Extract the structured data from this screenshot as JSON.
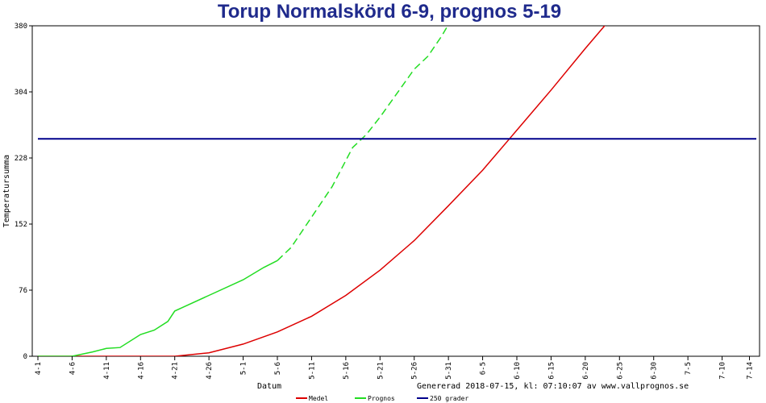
{
  "chart_data": {
    "type": "line",
    "title": "Torup Normalskörd 6-9, prognos 5-19",
    "xlabel": "Datum",
    "ylabel": "Temperatursumma",
    "footer": "Genererad 2018-07-15, kl: 07:10:07 av www.vallprognos.se",
    "ylim": [
      0,
      380
    ],
    "yticks": [
      0,
      76,
      152,
      228,
      304,
      380
    ],
    "x_start": "4-1",
    "x_end": "7-15",
    "xticks": [
      "4-1",
      "4-6",
      "4-11",
      "4-16",
      "4-21",
      "4-26",
      "5-1",
      "5-6",
      "5-11",
      "5-16",
      "5-21",
      "5-26",
      "5-31",
      "6-5",
      "6-10",
      "6-15",
      "6-20",
      "6-25",
      "6-30",
      "7-5",
      "7-10",
      "7-14"
    ],
    "grid": false,
    "legend_position": "bottom",
    "series": [
      {
        "name": "Medel",
        "color": "#dd0000",
        "style": "solid",
        "points": [
          [
            "4-1",
            0
          ],
          [
            "4-21",
            0
          ],
          [
            "4-26",
            4
          ],
          [
            "5-1",
            14
          ],
          [
            "5-6",
            28
          ],
          [
            "5-11",
            46
          ],
          [
            "5-16",
            70
          ],
          [
            "5-21",
            99
          ],
          [
            "5-26",
            133
          ],
          [
            "5-31",
            173
          ],
          [
            "6-5",
            214
          ],
          [
            "6-10",
            260
          ],
          [
            "6-15",
            306
          ],
          [
            "6-20",
            354
          ],
          [
            "6-25",
            400
          ]
        ]
      },
      {
        "name": "Prognos",
        "color": "#22dd22",
        "style": "dashed_after",
        "dash_from": "5-6",
        "points": [
          [
            "4-1",
            0
          ],
          [
            "4-6",
            0
          ],
          [
            "4-9",
            5
          ],
          [
            "4-11",
            9
          ],
          [
            "4-13",
            10
          ],
          [
            "4-16",
            25
          ],
          [
            "4-18",
            30
          ],
          [
            "4-20",
            40
          ],
          [
            "4-21",
            52
          ],
          [
            "4-26",
            70
          ],
          [
            "5-1",
            88
          ],
          [
            "5-4",
            102
          ],
          [
            "5-6",
            110
          ],
          [
            "5-8",
            125
          ],
          [
            "5-11",
            160
          ],
          [
            "5-14",
            195
          ],
          [
            "5-17",
            240
          ],
          [
            "5-19",
            255
          ],
          [
            "5-21",
            275
          ],
          [
            "5-26",
            330
          ],
          [
            "5-28",
            345
          ],
          [
            "5-30",
            368
          ],
          [
            "6-1",
            395
          ]
        ]
      },
      {
        "name": "250 grader",
        "color": "#00008b",
        "style": "solid",
        "points": [
          [
            "4-1",
            250
          ],
          [
            "7-15",
            250
          ]
        ]
      }
    ]
  }
}
